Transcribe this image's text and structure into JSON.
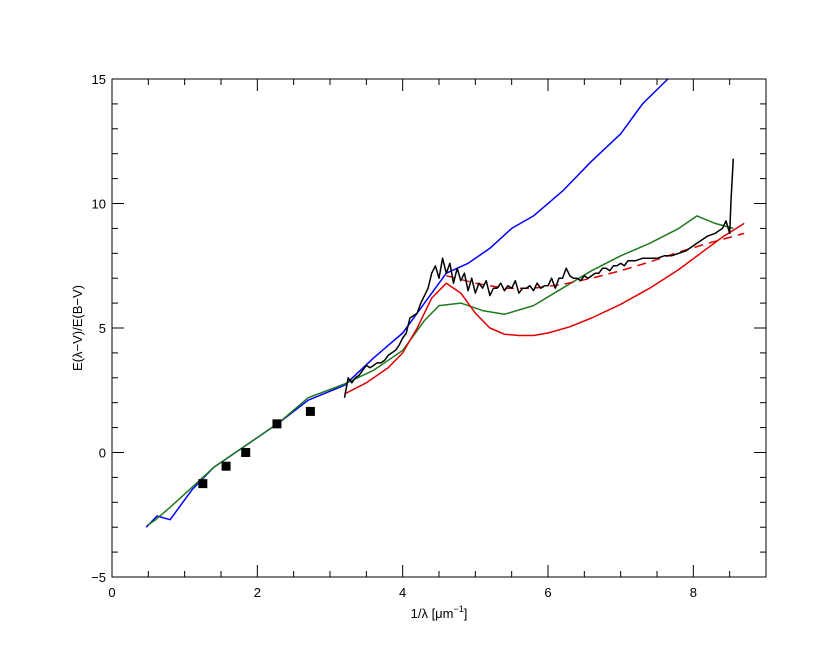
{
  "chart_data": {
    "type": "line",
    "title": "",
    "xlabel": "1/λ [μm",
    "xlabel_superscript": "−1",
    "xlabel_suffix": "]",
    "ylabel": "E(λ−V)/E(B−V)",
    "xlim": [
      0,
      9
    ],
    "ylim": [
      -5,
      15
    ],
    "x_ticks": [
      0,
      2,
      4,
      6,
      8
    ],
    "y_ticks": [
      -5,
      0,
      5,
      10,
      15
    ],
    "x_tick_labels": [
      "0",
      "2",
      "4",
      "6",
      "8"
    ],
    "y_tick_labels": [
      "−5",
      "0",
      "5",
      "10",
      "15"
    ],
    "grid": false,
    "series": [
      {
        "style": "solid",
        "color": "#0000ff",
        "x": [
          0.47,
          0.62,
          0.8,
          1.1,
          1.4,
          1.7,
          2.0,
          2.3,
          2.7,
          3.2,
          3.6,
          4.0,
          4.3,
          4.6,
          4.9,
          5.2,
          5.5,
          5.8,
          6.2,
          6.6,
          7.0,
          7.3,
          7.65
        ],
        "y": [
          -3.0,
          -2.55,
          -2.7,
          -1.5,
          -0.6,
          0.0,
          0.6,
          1.2,
          2.1,
          2.7,
          3.8,
          4.8,
          6.0,
          7.2,
          7.6,
          8.2,
          9.0,
          9.5,
          10.5,
          11.7,
          12.8,
          14.0,
          15.0
        ]
      },
      {
        "style": "solid",
        "color": "#1f7a1f",
        "x": [
          0.5,
          0.6,
          0.8,
          1.1,
          1.4,
          1.7,
          2.0,
          2.3,
          2.7,
          3.2,
          3.6,
          4.0,
          4.3,
          4.5,
          4.8,
          5.1,
          5.4,
          5.8,
          6.2,
          6.6,
          7.0,
          7.4,
          7.8,
          8.05,
          8.3,
          8.55
        ],
        "y": [
          -2.9,
          -2.7,
          -2.2,
          -1.4,
          -0.6,
          0.0,
          0.6,
          1.2,
          2.2,
          2.75,
          3.3,
          4.1,
          5.3,
          5.9,
          6.0,
          5.7,
          5.55,
          5.9,
          6.6,
          7.3,
          7.9,
          8.4,
          9.0,
          9.5,
          9.2,
          9.0
        ]
      },
      {
        "style": "solid",
        "color": "#e00000",
        "x": [
          3.2,
          3.5,
          3.8,
          4.0,
          4.2,
          4.4,
          4.6,
          4.8,
          5.0,
          5.2,
          5.4,
          5.6,
          5.8,
          6.0,
          6.3,
          6.6,
          7.0,
          7.4,
          7.8,
          8.1,
          8.4,
          8.7
        ],
        "y": [
          2.35,
          2.8,
          3.4,
          4.0,
          5.0,
          6.2,
          6.8,
          6.4,
          5.6,
          5.0,
          4.75,
          4.7,
          4.7,
          4.8,
          5.05,
          5.4,
          5.95,
          6.6,
          7.35,
          8.0,
          8.65,
          9.2
        ]
      },
      {
        "style": "dashed",
        "color": "#e00000",
        "x": [
          4.6,
          5.0,
          5.4,
          5.8,
          6.2,
          6.6,
          7.0,
          7.4,
          7.8,
          8.2,
          8.7
        ],
        "y": [
          7.1,
          6.8,
          6.6,
          6.6,
          6.75,
          7.0,
          7.3,
          7.65,
          8.05,
          8.4,
          8.8
        ]
      },
      {
        "style": "solid",
        "color": "#000000",
        "x": [
          3.2,
          3.25,
          3.3,
          3.35,
          3.4,
          3.45,
          3.5,
          3.55,
          3.6,
          3.65,
          3.7,
          3.75,
          3.8,
          3.85,
          3.9,
          3.95,
          4.0,
          4.05,
          4.1,
          4.15,
          4.2,
          4.25,
          4.3,
          4.35,
          4.4,
          4.45,
          4.5,
          4.55,
          4.6,
          4.65,
          4.7,
          4.75,
          4.8,
          4.85,
          4.9,
          4.95,
          5.0,
          5.05,
          5.1,
          5.15,
          5.2,
          5.25,
          5.3,
          5.35,
          5.4,
          5.45,
          5.5,
          5.55,
          5.6,
          5.65,
          5.7,
          5.75,
          5.8,
          5.85,
          5.9,
          5.95,
          6.0,
          6.05,
          6.1,
          6.15,
          6.2,
          6.25,
          6.3,
          6.35,
          6.4,
          6.45,
          6.5,
          6.55,
          6.6,
          6.65,
          6.7,
          6.75,
          6.8,
          6.85,
          6.9,
          6.95,
          7.0,
          7.05,
          7.1,
          7.2,
          7.3,
          7.4,
          7.5,
          7.6,
          7.7,
          7.8,
          7.9,
          8.0,
          8.1,
          8.2,
          8.3,
          8.4,
          8.45,
          8.5,
          8.52,
          8.55
        ],
        "y": [
          2.2,
          3.0,
          2.8,
          3.0,
          3.1,
          3.3,
          3.5,
          3.4,
          3.5,
          3.6,
          3.6,
          3.7,
          3.9,
          4.0,
          4.1,
          4.3,
          4.6,
          4.8,
          5.4,
          5.5,
          5.6,
          6.0,
          6.3,
          6.6,
          7.2,
          7.5,
          7.0,
          7.8,
          7.2,
          7.6,
          6.8,
          7.4,
          6.9,
          7.2,
          6.5,
          7.0,
          6.4,
          6.8,
          6.6,
          6.9,
          6.3,
          6.6,
          6.6,
          6.8,
          6.5,
          6.7,
          6.6,
          6.9,
          6.4,
          6.6,
          6.6,
          6.7,
          6.5,
          6.8,
          6.6,
          6.7,
          6.7,
          7.0,
          6.6,
          7.0,
          7.0,
          7.4,
          7.1,
          7.0,
          7.0,
          6.9,
          7.1,
          7.0,
          7.1,
          7.2,
          7.2,
          7.4,
          7.4,
          7.3,
          7.5,
          7.5,
          7.6,
          7.5,
          7.7,
          7.7,
          7.8,
          7.8,
          7.8,
          7.9,
          7.9,
          8.0,
          8.1,
          8.3,
          8.5,
          8.7,
          8.8,
          9.0,
          9.3,
          8.8,
          10.2,
          11.8
        ]
      },
      {
        "style": "markers",
        "color": "#000000",
        "marker": "square",
        "x": [
          1.25,
          1.57,
          1.84,
          2.27,
          2.73
        ],
        "y": [
          -1.25,
          -0.55,
          0.0,
          1.15,
          1.65
        ]
      }
    ]
  }
}
